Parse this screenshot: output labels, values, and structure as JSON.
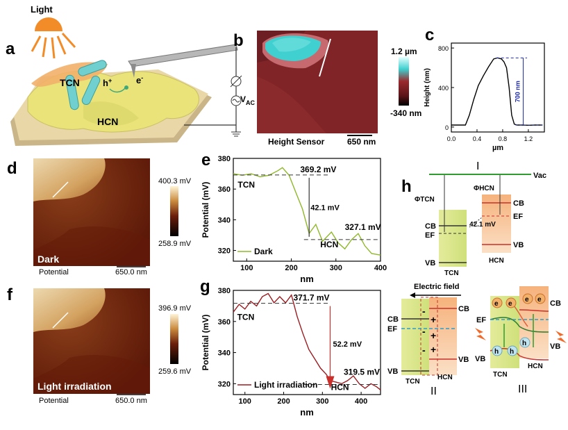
{
  "panel_letters": {
    "a": "a",
    "b": "b",
    "c": "c",
    "d": "d",
    "e": "e",
    "f": "f",
    "g": "g",
    "h": "h"
  },
  "panel_a": {
    "light_label": "Light",
    "tcn": "TCN",
    "hcn": "HCN",
    "hole": "h",
    "hole_sup": "+",
    "electron": "e",
    "electron_sup": "-",
    "vac": "V",
    "vac_sub": "AC",
    "colors": {
      "plate": "#e9d7a8",
      "film": "#e9e37a",
      "sun": "#f28c28",
      "rods": "#6fd0cf"
    }
  },
  "panel_b": {
    "caption": "Height Sensor",
    "scale": "650 nm",
    "cbar_max": "1.2 µm",
    "cbar_min": "-340 nm"
  },
  "panel_d": {
    "overlay": "Dark",
    "caption": "Potential",
    "scale": "650.0 nm",
    "cbar_max": "400.3 mV",
    "cbar_min": "258.9 mV"
  },
  "panel_f": {
    "overlay": "Light irradiation",
    "caption": "Potential",
    "scale": "650.0 nm",
    "cbar_max": "396.9 mV",
    "cbar_min": "259.6 mV"
  },
  "panel_h": {
    "roman1": "I",
    "roman2": "II",
    "roman3": "III",
    "vac": "Vac",
    "phi_tcn": "ΦTCN",
    "phi_hcn": "ΦHCN",
    "cb": "CB",
    "ef": "EF",
    "vb": "VB",
    "diff": "42.1 mV",
    "tcn": "TCN",
    "hcn": "HCN",
    "efield": "Electric field",
    "e": "e",
    "h": "h",
    "minus": "-",
    "plus": "+"
  },
  "chart_data": [
    {
      "id": "c",
      "type": "line",
      "xlabel": "µm",
      "ylabel": "Height (nm)",
      "xticks": [
        "0.0",
        "0.4",
        "0.8",
        "1.2"
      ],
      "yticks": [
        "0",
        "400",
        "800"
      ],
      "xlim": [
        0,
        1.45
      ],
      "ylim": [
        -50,
        850
      ],
      "x": [
        0.0,
        0.22,
        0.28,
        0.35,
        0.42,
        0.5,
        0.58,
        0.66,
        0.72,
        0.78,
        0.82,
        0.86,
        0.9,
        0.94,
        0.98,
        1.02,
        1.1,
        1.2,
        1.3,
        1.42
      ],
      "y": [
        20,
        20,
        120,
        280,
        420,
        520,
        610,
        690,
        700,
        690,
        660,
        600,
        400,
        120,
        30,
        20,
        20,
        18,
        20,
        20
      ],
      "annotation": "700 nm",
      "annotation_value": 700
    },
    {
      "id": "e",
      "type": "line",
      "xlabel": "nm",
      "ylabel": "Potential (mV)",
      "xticks": [
        "100",
        "200",
        "300",
        "400"
      ],
      "yticks": [
        "320",
        "340",
        "360",
        "380"
      ],
      "xlim": [
        70,
        400
      ],
      "ylim": [
        313,
        380
      ],
      "legend": "Dark",
      "series_color": "#8fb82a",
      "x": [
        70,
        90,
        110,
        130,
        150,
        170,
        180,
        195,
        210,
        225,
        240,
        255,
        270,
        290,
        305,
        320,
        335,
        350,
        365,
        380,
        400
      ],
      "y": [
        370,
        369,
        370,
        368,
        369,
        372,
        374,
        369,
        358,
        347,
        331,
        337,
        326,
        332,
        325,
        321,
        327,
        331,
        323,
        318,
        317
      ],
      "labels": {
        "TCN": "TCN",
        "HCN": "HCN",
        "ann1": "369.2 mV",
        "ann2": "42.1 mV",
        "ann3": "327.1 mV"
      },
      "lines": {
        "upper": 369.2,
        "lower": 327.1
      }
    },
    {
      "id": "g",
      "type": "line",
      "xlabel": "nm",
      "ylabel": "Potential (mV)",
      "xticks": [
        "100",
        "200",
        "300",
        "400"
      ],
      "yticks": [
        "320",
        "340",
        "360",
        "380"
      ],
      "xlim": [
        70,
        450
      ],
      "ylim": [
        313,
        380
      ],
      "legend": "Light irradiation",
      "series_color": "#9b1b20",
      "x": [
        70,
        85,
        100,
        115,
        130,
        145,
        160,
        175,
        190,
        205,
        220,
        235,
        250,
        265,
        280,
        295,
        310,
        320,
        335,
        350,
        365,
        380,
        395,
        410,
        425,
        440,
        450
      ],
      "y": [
        366,
        371,
        368,
        373,
        370,
        376,
        378,
        372,
        376,
        372,
        377,
        363,
        352,
        342,
        336,
        330,
        326,
        322,
        321,
        320,
        322,
        325,
        320,
        317,
        320,
        318,
        316
      ],
      "labels": {
        "TCN": "TCN",
        "HCN": "HCN",
        "ann1": "371.7 mV",
        "ann2": "52.2 mV",
        "ann3": "319.5 mV"
      },
      "lines": {
        "upper": 371.7,
        "lower": 319.5
      }
    }
  ]
}
